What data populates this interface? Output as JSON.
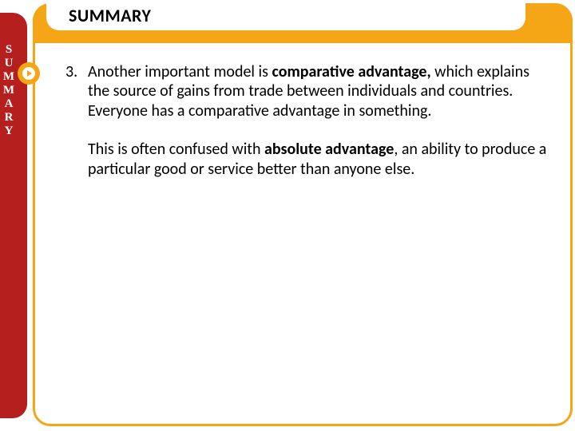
{
  "colors": {
    "orange": "#f5a617",
    "red": "#b51f1e",
    "white": "#ffffff",
    "text": "#000000"
  },
  "header": {
    "title": "SUMMARY"
  },
  "sidebar": {
    "letters": [
      "S",
      "U",
      "M",
      "M",
      "A",
      "R",
      "Y"
    ]
  },
  "body": {
    "number": "3.",
    "p1_a": "Another important model is ",
    "p1_b": "comparative advantage,",
    "p1_c": " which explains the source of gains from trade between individuals and countries. Everyone has a comparative advantage in something.",
    "p2_a": "This is often confused with ",
    "p2_b": "absolute advantage",
    "p2_c": ", an ability to produce a particular good or service better than anyone else."
  }
}
